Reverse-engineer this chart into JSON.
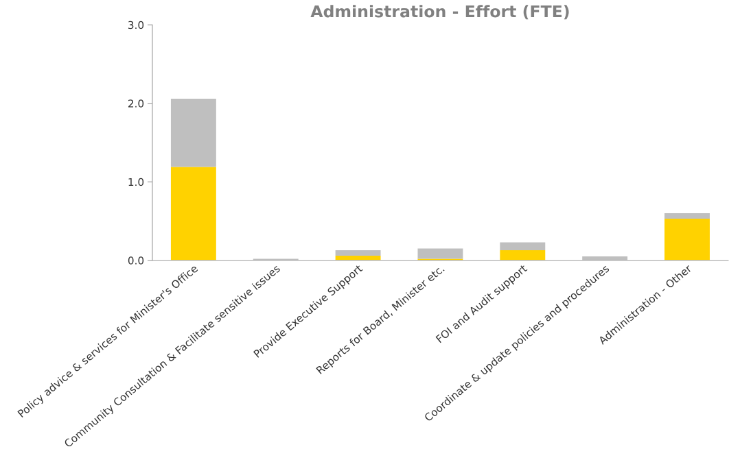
{
  "chart_data": {
    "type": "bar",
    "title": "Administration - Effort (FTE)",
    "stacked": true,
    "categories": [
      "Policy advice & services for Minister's Office",
      "Community Consultation & Facilitate sensitive issues",
      "Provide Executive Support",
      "Reports for Board, Minister etc.",
      "FOI and Audit support",
      "Coordinate & update policies and procedures",
      "Administration - Other"
    ],
    "series": [
      {
        "color": "#ffd200",
        "values": [
          1.19,
          0,
          0.06,
          0.02,
          0.13,
          0,
          0.53
        ]
      },
      {
        "color": "#bfbfbf",
        "values": [
          0.87,
          0.02,
          0.07,
          0.13,
          0.1,
          0.05,
          0.07
        ]
      }
    ],
    "ylim": [
      0,
      3
    ],
    "yticks": [
      {
        "value": 0,
        "label": "0.0"
      },
      {
        "value": 1,
        "label": "1.0"
      },
      {
        "value": 2,
        "label": "2.0"
      },
      {
        "value": 3,
        "label": "3.0"
      }
    ],
    "grid": false
  }
}
